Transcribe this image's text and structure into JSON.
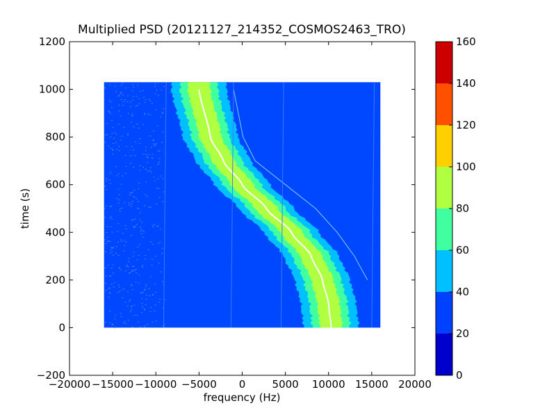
{
  "chart_data": {
    "type": "heatmap",
    "title": "Multiplied PSD (20121127_214352_COSMOS2463_TRO)",
    "xlabel": "frequency (Hz)",
    "ylabel": "time (s)",
    "xlim": [
      -20000,
      20000
    ],
    "ylim": [
      -200,
      1200
    ],
    "x_ticks": [
      -20000,
      -15000,
      -10000,
      -5000,
      0,
      5000,
      10000,
      15000,
      20000
    ],
    "x_tick_labels": [
      "−20000",
      "−15000",
      "−10000",
      "−5000",
      "0",
      "5000",
      "10000",
      "15000",
      "20000"
    ],
    "y_ticks": [
      -200,
      0,
      200,
      400,
      600,
      800,
      1000,
      1200
    ],
    "y_tick_labels": [
      "−200",
      "0",
      "200",
      "400",
      "600",
      "800",
      "1000",
      "1200"
    ],
    "data_extent": {
      "x": [
        -16000,
        16000
      ],
      "y": [
        0,
        1030
      ]
    },
    "background_level": 25,
    "band": {
      "description_points": [
        {
          "t": 1000,
          "f": -5000
        },
        {
          "t": 800,
          "f": -3700
        },
        {
          "t": 700,
          "f": -2200
        },
        {
          "t": 600,
          "f": 0
        },
        {
          "t": 500,
          "f": 2800
        },
        {
          "t": 400,
          "f": 5700
        },
        {
          "t": 300,
          "f": 8000
        },
        {
          "t": 200,
          "f": 9300
        },
        {
          "t": 100,
          "f": 10000
        },
        {
          "t": 0,
          "f": 10300
        }
      ],
      "halfwidths_hz": {
        "40-60": 3200,
        "60-80": 2200,
        "80-100": 1300
      },
      "peak_level": 100
    },
    "secondary_trace": [
      {
        "t": 1000,
        "f": -1000
      },
      {
        "t": 800,
        "f": 100
      },
      {
        "t": 700,
        "f": 1500
      },
      {
        "t": 600,
        "f": 5000
      },
      {
        "t": 500,
        "f": 8500
      },
      {
        "t": 400,
        "f": 11000
      },
      {
        "t": 300,
        "f": 13000
      },
      {
        "t": 200,
        "f": 14500
      }
    ],
    "colorbar": {
      "ticks": [
        "0",
        "20",
        "40",
        "60",
        "80",
        "100",
        "120",
        "140",
        "160"
      ],
      "levels": [
        0,
        20,
        40,
        60,
        80,
        100,
        120,
        140,
        160
      ],
      "colors": [
        "#0000cc",
        "#0040ff",
        "#00c0ff",
        "#40ffa0",
        "#b0ff40",
        "#ffd000",
        "#ff5000",
        "#cc0000"
      ]
    }
  }
}
